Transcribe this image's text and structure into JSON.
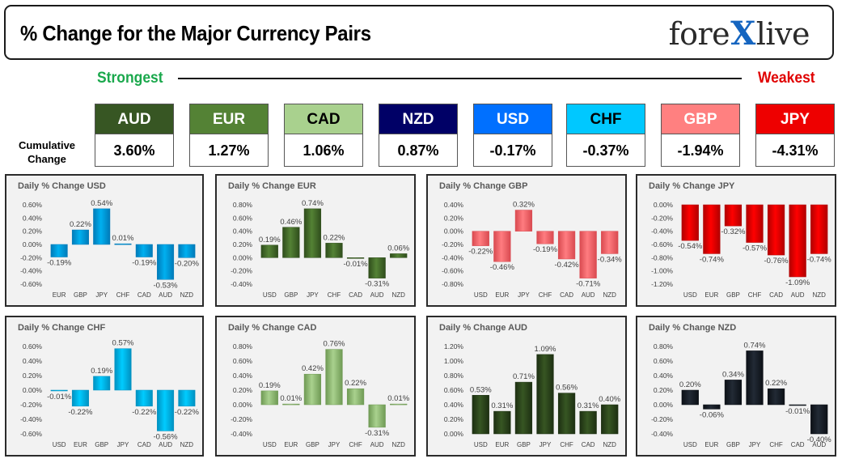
{
  "header": {
    "title": "% Change for the Major Currency Pairs",
    "logo_left": "fore",
    "logo_x": "X",
    "logo_right": "live"
  },
  "ranking": {
    "strongest_label": "Strongest",
    "weakest_label": "Weakest",
    "cumulative_label": "Cumulative Change"
  },
  "currencies": [
    {
      "code": "AUD",
      "value": "3.60%",
      "bg": "#375623",
      "fg": "#ffffff"
    },
    {
      "code": "EUR",
      "value": "1.27%",
      "bg": "#548235",
      "fg": "#ffffff"
    },
    {
      "code": "CAD",
      "value": "1.06%",
      "bg": "#a9d18e",
      "fg": "#000000"
    },
    {
      "code": "NZD",
      "value": "0.87%",
      "bg": "#000066",
      "fg": "#ffffff"
    },
    {
      "code": "USD",
      "value": "-0.17%",
      "bg": "#0070ff",
      "fg": "#ffffff"
    },
    {
      "code": "CHF",
      "value": "-0.37%",
      "bg": "#00c8ff",
      "fg": "#000000"
    },
    {
      "code": "GBP",
      "value": "-1.94%",
      "bg": "#ff8080",
      "fg": "#ffffff"
    },
    {
      "code": "JPY",
      "value": "-4.31%",
      "bg": "#ee0000",
      "fg": "#ffffff"
    }
  ],
  "chart_data": [
    {
      "type": "bar",
      "title": "Daily % Change USD",
      "categories": [
        "EUR",
        "GBP",
        "JPY",
        "CHF",
        "CAD",
        "AUD",
        "NZD"
      ],
      "values": [
        -0.19,
        0.22,
        0.54,
        0.01,
        -0.19,
        -0.53,
        -0.2
      ],
      "labels": [
        "-0.19%",
        "0.22%",
        "0.54%",
        "0.01%",
        "-0.19%",
        "-0.53%",
        "-0.20%"
      ],
      "ylim": [
        -0.6,
        0.6
      ],
      "ticks": [
        "0.60%",
        "0.40%",
        "0.20%",
        "0.00%",
        "-0.20%",
        "-0.40%",
        "-0.60%"
      ],
      "tick_values": [
        0.6,
        0.4,
        0.2,
        0,
        -0.2,
        -0.4,
        -0.6
      ],
      "color": "#00b0f0",
      "dark": "#007ab8"
    },
    {
      "type": "bar",
      "title": "Daily % Change EUR",
      "categories": [
        "USD",
        "GBP",
        "JPY",
        "CHF",
        "CAD",
        "AUD",
        "NZD"
      ],
      "values": [
        0.19,
        0.46,
        0.74,
        0.22,
        -0.01,
        -0.31,
        0.06
      ],
      "labels": [
        "0.19%",
        "0.46%",
        "0.74%",
        "0.22%",
        "-0.01%",
        "-0.31%",
        "0.06%"
      ],
      "ylim": [
        -0.4,
        0.8
      ],
      "ticks": [
        "0.80%",
        "0.60%",
        "0.40%",
        "0.20%",
        "0.00%",
        "-0.20%",
        "-0.40%"
      ],
      "tick_values": [
        0.8,
        0.6,
        0.4,
        0.2,
        0,
        -0.2,
        -0.4
      ],
      "color": "#548235",
      "dark": "#2f4d1c"
    },
    {
      "type": "bar",
      "title": "Daily % Change GBP",
      "categories": [
        "USD",
        "EUR",
        "JPY",
        "CHF",
        "CAD",
        "AUD",
        "NZD"
      ],
      "values": [
        -0.22,
        -0.46,
        0.32,
        -0.19,
        -0.42,
        -0.71,
        -0.34
      ],
      "labels": [
        "-0.22%",
        "-0.46%",
        "0.32%",
        "-0.19%",
        "-0.42%",
        "-0.71%",
        "-0.34%"
      ],
      "ylim": [
        -0.8,
        0.4
      ],
      "ticks": [
        "0.40%",
        "0.20%",
        "0.00%",
        "-0.20%",
        "-0.40%",
        "-0.60%",
        "-0.80%"
      ],
      "tick_values": [
        0.4,
        0.2,
        0,
        -0.2,
        -0.4,
        -0.6,
        -0.8
      ],
      "color": "#ff7c80",
      "dark": "#d94a50"
    },
    {
      "type": "bar",
      "title": "Daily % Change JPY",
      "categories": [
        "USD",
        "EUR",
        "GBP",
        "CHF",
        "CAD",
        "AUD",
        "NZD"
      ],
      "values": [
        -0.54,
        -0.74,
        -0.32,
        -0.57,
        -0.76,
        -1.09,
        -0.74
      ],
      "labels": [
        "-0.54%",
        "-0.74%",
        "-0.32%",
        "-0.57%",
        "-0.76%",
        "-1.09%",
        "-0.74%"
      ],
      "ylim": [
        -1.2,
        0.0
      ],
      "ticks": [
        "0.00%",
        "-0.20%",
        "-0.40%",
        "-0.60%",
        "-0.80%",
        "-1.00%",
        "-1.20%"
      ],
      "tick_values": [
        0,
        -0.2,
        -0.4,
        -0.6,
        -0.8,
        -1.0,
        -1.2
      ],
      "color": "#ff0000",
      "dark": "#b00000"
    },
    {
      "type": "bar",
      "title": "Daily % Change CHF",
      "categories": [
        "USD",
        "EUR",
        "GBP",
        "JPY",
        "CAD",
        "AUD",
        "NZD"
      ],
      "values": [
        -0.01,
        -0.22,
        0.19,
        0.57,
        -0.22,
        -0.56,
        -0.22
      ],
      "labels": [
        "-0.01%",
        "-0.22%",
        "0.19%",
        "0.57%",
        "-0.22%",
        "-0.56%",
        "-0.22%"
      ],
      "ylim": [
        -0.6,
        0.6
      ],
      "ticks": [
        "0.60%",
        "0.40%",
        "0.20%",
        "0.00%",
        "-0.20%",
        "-0.40%",
        "-0.60%"
      ],
      "tick_values": [
        0.6,
        0.4,
        0.2,
        0,
        -0.2,
        -0.4,
        -0.6
      ],
      "color": "#00ccff",
      "dark": "#0090c0"
    },
    {
      "type": "bar",
      "title": "Daily % Change CAD",
      "categories": [
        "USD",
        "EUR",
        "GBP",
        "JPY",
        "CHF",
        "AUD",
        "NZD"
      ],
      "values": [
        0.19,
        0.01,
        0.42,
        0.76,
        0.22,
        -0.31,
        0.01
      ],
      "labels": [
        "0.19%",
        "0.01%",
        "0.42%",
        "0.76%",
        "0.22%",
        "-0.31%",
        "0.01%"
      ],
      "ylim": [
        -0.4,
        0.8
      ],
      "ticks": [
        "0.80%",
        "0.60%",
        "0.40%",
        "0.20%",
        "0.00%",
        "-0.20%",
        "-0.40%"
      ],
      "tick_values": [
        0.8,
        0.6,
        0.4,
        0.2,
        0,
        -0.2,
        -0.4
      ],
      "color": "#a9d18e",
      "dark": "#6f9a54"
    },
    {
      "type": "bar",
      "title": "Daily % Change AUD",
      "categories": [
        "USD",
        "EUR",
        "GBP",
        "JPY",
        "CHF",
        "CAD",
        "NZD"
      ],
      "values": [
        0.53,
        0.31,
        0.71,
        1.09,
        0.56,
        0.31,
        0.4
      ],
      "labels": [
        "0.53%",
        "0.31%",
        "0.71%",
        "1.09%",
        "0.56%",
        "0.31%",
        "0.40%"
      ],
      "ylim": [
        0.0,
        1.2
      ],
      "ticks": [
        "1.20%",
        "1.00%",
        "0.80%",
        "0.60%",
        "0.40%",
        "0.20%",
        "0.00%"
      ],
      "tick_values": [
        1.2,
        1.0,
        0.8,
        0.6,
        0.4,
        0.2,
        0
      ],
      "color": "#375623",
      "dark": "#1d2f12"
    },
    {
      "type": "bar",
      "title": "Daily % Change NZD",
      "categories": [
        "USD",
        "EUR",
        "GBP",
        "JPY",
        "CHF",
        "CAD",
        "AUD"
      ],
      "values": [
        0.2,
        -0.06,
        0.34,
        0.74,
        0.22,
        -0.01,
        -0.4
      ],
      "labels": [
        "0.20%",
        "-0.06%",
        "0.34%",
        "0.74%",
        "0.22%",
        "-0.01%",
        "-0.40%"
      ],
      "ylim": [
        -0.4,
        0.8
      ],
      "ticks": [
        "0.80%",
        "0.60%",
        "0.40%",
        "0.20%",
        "0.00%",
        "-0.20%",
        "-0.40%"
      ],
      "tick_values": [
        0.8,
        0.6,
        0.4,
        0.2,
        0,
        -0.2,
        -0.4
      ],
      "color": "#222a35",
      "dark": "#0c1016"
    }
  ]
}
